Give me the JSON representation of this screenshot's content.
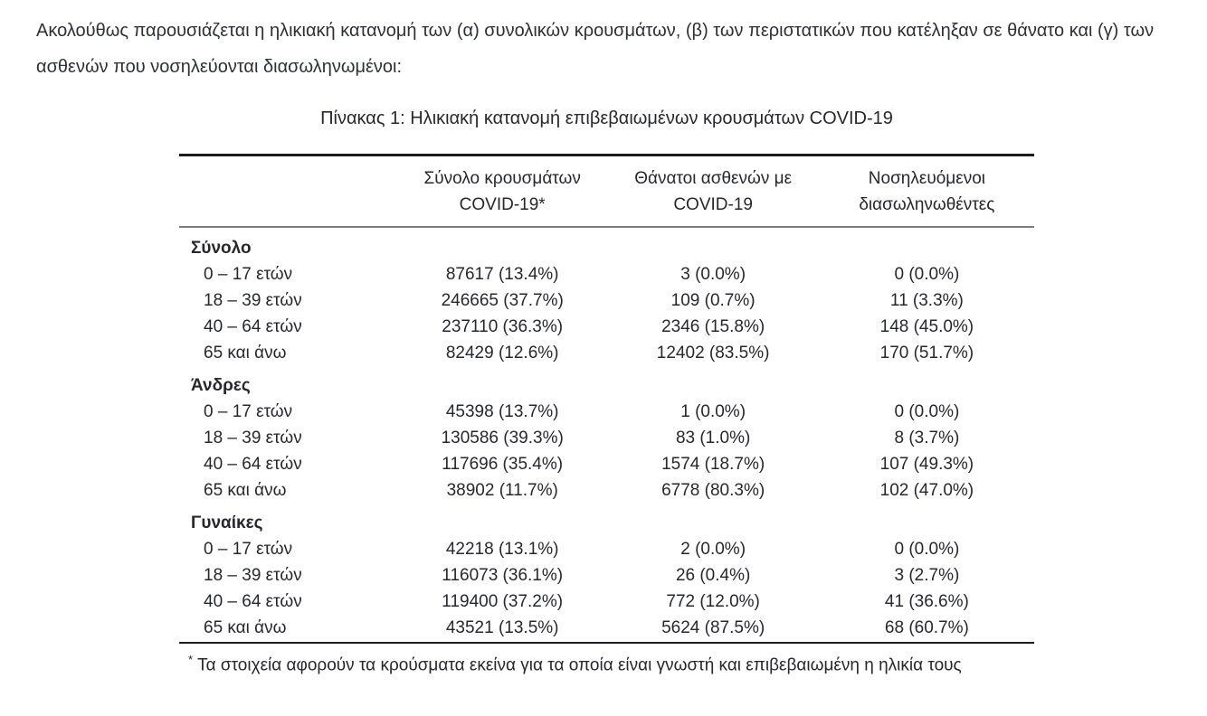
{
  "intro_text": "Ακολούθως παρουσιάζεται η ηλικιακή κατανομή των (α) συνολικών κρουσμάτων, (β) των περιστατικών που κατέληξαν σε θάνατο και (γ) των ασθενών που νοσηλεύονται διασωληνωμένοι:",
  "colors": {
    "text": "#26282e",
    "rule_dark": "#1c1c1c",
    "rule_gray": "#7d7d7d"
  },
  "table": {
    "title": "Πίνακας 1: Ηλικιακή κατανομή επιβεβαιωμένων κρουσμάτων COVID-19",
    "header": {
      "cases": {
        "line1": "Σύνολο κρουσμάτων",
        "line2": "COVID-19*"
      },
      "deaths": {
        "line1": "Θάνατοι ασθενών με",
        "line2": "COVID-19"
      },
      "intubated": {
        "line1": "Νοσηλευόμενοι",
        "line2": "διασωληνωθέντες"
      }
    },
    "sections": [
      {
        "label": "Σύνολο",
        "rows": [
          {
            "age": "0 – 17 ετών",
            "cases": "87617 (13.4%)",
            "deaths": "3 (0.0%)",
            "intubated": "0 (0.0%)"
          },
          {
            "age": "18 – 39 ετών",
            "cases": "246665 (37.7%)",
            "deaths": "109 (0.7%)",
            "intubated": "11 (3.3%)"
          },
          {
            "age": "40 – 64 ετών",
            "cases": "237110 (36.3%)",
            "deaths": "2346 (15.8%)",
            "intubated": "148 (45.0%)"
          },
          {
            "age": "65 και άνω",
            "cases": "82429 (12.6%)",
            "deaths": "12402 (83.5%)",
            "intubated": "170 (51.7%)"
          }
        ]
      },
      {
        "label": "Άνδρες",
        "rows": [
          {
            "age": "0 – 17 ετών",
            "cases": "45398 (13.7%)",
            "deaths": "1 (0.0%)",
            "intubated": "0 (0.0%)"
          },
          {
            "age": "18 – 39 ετών",
            "cases": "130586 (39.3%)",
            "deaths": "83 (1.0%)",
            "intubated": "8 (3.7%)"
          },
          {
            "age": "40 – 64 ετών",
            "cases": "117696 (35.4%)",
            "deaths": "1574 (18.7%)",
            "intubated": "107 (49.3%)"
          },
          {
            "age": "65 και άνω",
            "cases": "38902 (11.7%)",
            "deaths": "6778 (80.3%)",
            "intubated": "102 (47.0%)"
          }
        ]
      },
      {
        "label": "Γυναίκες",
        "rows": [
          {
            "age": "0 – 17 ετών",
            "cases": "42218 (13.1%)",
            "deaths": "2 (0.0%)",
            "intubated": "0 (0.0%)"
          },
          {
            "age": "18 – 39 ετών",
            "cases": "116073 (36.1%)",
            "deaths": "26 (0.4%)",
            "intubated": "3 (2.7%)"
          },
          {
            "age": "40 – 64 ετών",
            "cases": "119400 (37.2%)",
            "deaths": "772 (12.0%)",
            "intubated": "41 (36.6%)"
          },
          {
            "age": "65 και άνω",
            "cases": "43521 (13.5%)",
            "deaths": "5624 (87.5%)",
            "intubated": "68 (60.7%)"
          }
        ]
      }
    ]
  },
  "footnote": {
    "marker": "*",
    "text": "Τα στοιχεία αφορούν τα κρούσματα εκείνα για τα οποία είναι γνωστή και επιβεβαιωμένη η ηλικία τους"
  }
}
